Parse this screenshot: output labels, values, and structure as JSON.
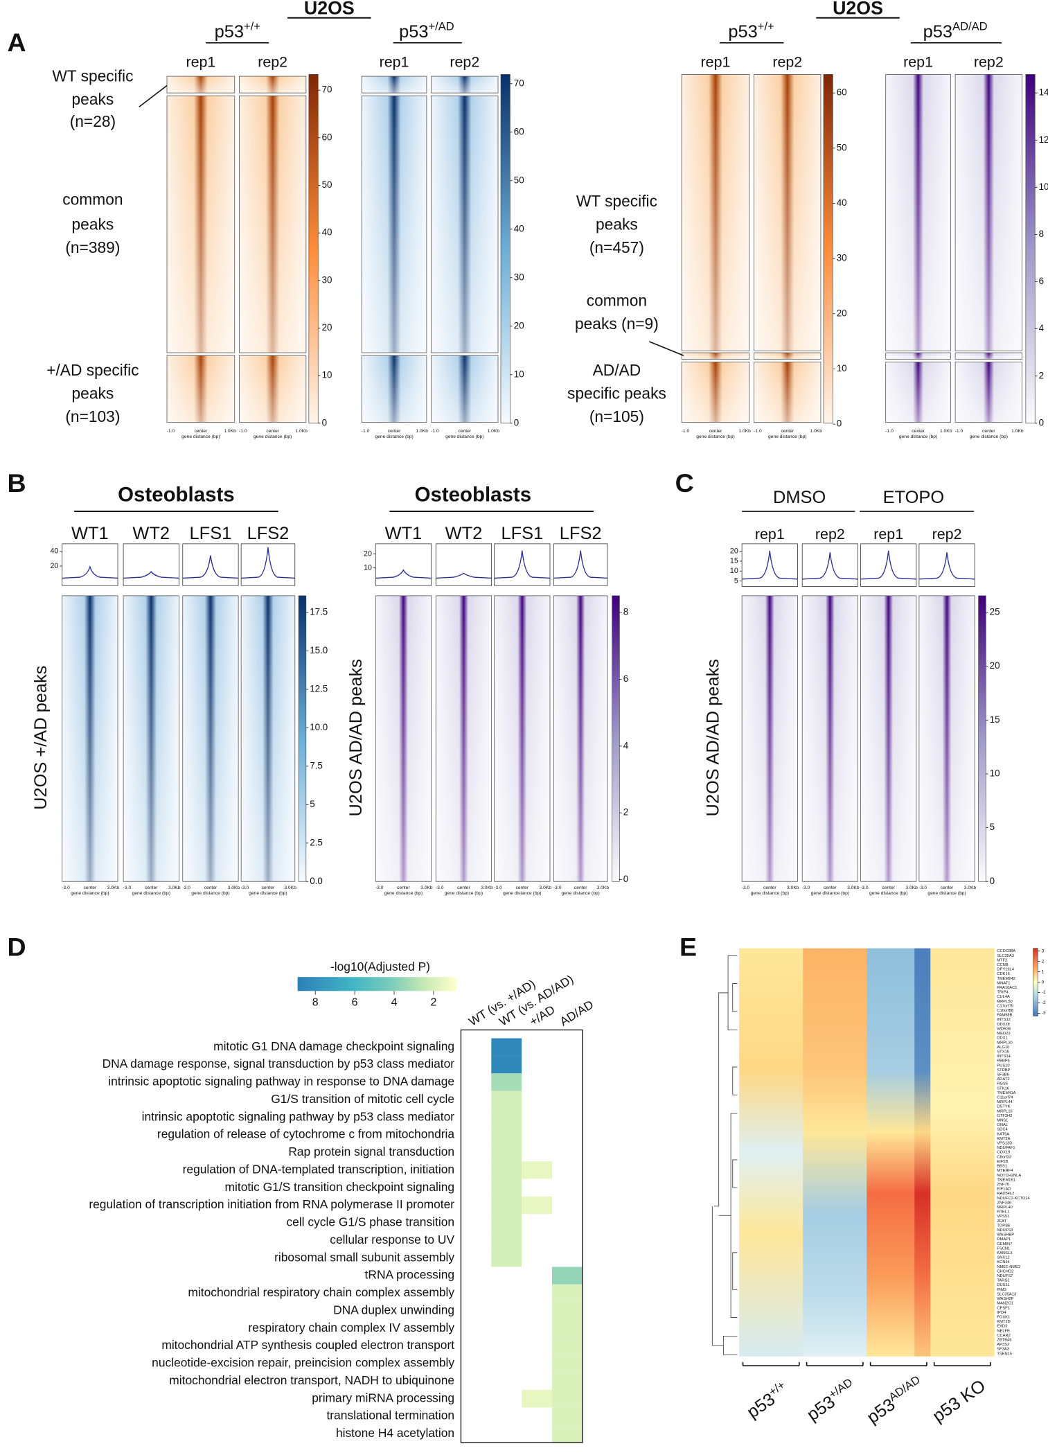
{
  "panel_a": {
    "label": "A",
    "left": {
      "title": "U2OS",
      "headers": [
        {
          "text": "p53",
          "sup": "+/+"
        },
        {
          "text": "p53",
          "sup": "+/AD"
        }
      ],
      "reps": [
        "rep1",
        "rep2"
      ],
      "groups": [
        [
          "WT specific",
          "peaks",
          "(n=28)"
        ],
        [
          "common",
          "peaks",
          "(n=389)"
        ],
        [
          "+/AD specific",
          "peaks",
          "(n=103)"
        ]
      ],
      "colorbars": [
        [
          0,
          10,
          20,
          30,
          40,
          50,
          60,
          70
        ],
        [
          0,
          10,
          20,
          30,
          40,
          50,
          60,
          70
        ]
      ]
    },
    "right": {
      "title": "U2OS",
      "headers": [
        {
          "text": "p53",
          "sup": "+/+"
        },
        {
          "text": "p53",
          "sup": "AD/AD"
        }
      ],
      "reps": [
        "rep1",
        "rep2"
      ],
      "groups": [
        [
          "WT specific",
          "peaks",
          "(n=457)"
        ],
        [
          "common",
          "peaks (n=9)"
        ],
        [
          "AD/AD",
          "specific peaks",
          "(n=105)"
        ]
      ],
      "colorbars": [
        [
          0,
          10,
          20,
          30,
          40,
          50,
          60
        ],
        [
          0,
          2,
          4,
          6,
          8,
          10,
          12,
          14
        ]
      ]
    },
    "x_ticks": [
      "-1.0",
      "center",
      "1.0Kb"
    ],
    "x_label": "gene distance (bp)"
  },
  "panel_b": {
    "label": "B",
    "left": {
      "title": "Osteoblasts",
      "samples": [
        "WT1",
        "WT2",
        "LFS1",
        "LFS2"
      ],
      "y_label": "U2OS +/AD peaks",
      "profile_ticks": [
        20,
        40
      ],
      "colorbar": [
        {
          "value": 0,
          "label": "0.0"
        },
        2.5,
        5,
        7.5,
        {
          "value": 10,
          "label": "10.0"
        },
        12.5,
        {
          "value": 15,
          "label": "15.0"
        },
        17.5
      ]
    },
    "right": {
      "title": "Osteoblasts",
      "samples": [
        "WT1",
        "WT2",
        "LFS1",
        "LFS2"
      ],
      "y_label": "U2OS AD/AD peaks",
      "profile_ticks": [
        10,
        20
      ],
      "colorbar": [
        0,
        2,
        4,
        6,
        8
      ]
    },
    "x_ticks": [
      "-3.0",
      "center",
      "3.0Kb"
    ],
    "x_label": "gene distance (bp)"
  },
  "panel_c": {
    "label": "C",
    "conditions": [
      "DMSO",
      "ETOPO"
    ],
    "reps": [
      "rep1",
      "rep2"
    ],
    "y_label": "U2OS AD/AD peaks",
    "profile_ticks": [
      5,
      10,
      15,
      20
    ],
    "colorbar": [
      0,
      5,
      10,
      15,
      20,
      25
    ]
  },
  "panel_d": {
    "label": "D",
    "colorbar_title": "-log10(Adjusted P)",
    "colorbar_ticks": [
      8,
      6,
      4,
      2
    ],
    "vlim": [
      0.85,
      8.9
    ],
    "columns": [
      "WT (vs. +/AD)",
      "WT (vs. AD/AD)",
      "+/AD",
      "AD/AD"
    ],
    "terms": [
      "mitotic G1 DNA damage checkpoint signaling",
      "DNA damage response, signal transduction by p53 class mediator",
      "intrinsic apoptotic signaling pathway in response to DNA damage",
      "G1/S transition of mitotic cell cycle",
      "intrinsic apoptotic signaling pathway by p53 class mediator",
      "regulation of release of cytochrome c from mitochondria",
      "Rap protein signal transduction",
      "regulation of DNA-templated transcription, initiation",
      "mitotic G1/S transition checkpoint signaling",
      "regulation of transcription initiation from RNA polymerase II promoter",
      "cell cycle G1/S phase transition",
      "cellular response to UV",
      "ribosomal small subunit assembly",
      "tRNA processing",
      "mitochondrial respiratory chain complex assembly",
      "DNA duplex unwinding",
      "respiratory chain complex IV assembly",
      "mitochondrial ATP synthesis coupled electron transport",
      "nucleotide-excision repair, preincision complex assembly",
      "mitochondrial electron transport, NADH to ubiquinone",
      "primary miRNA processing",
      "translational termination",
      "histone H4 acetylation"
    ],
    "values": [
      [
        null,
        8.5,
        null,
        null
      ],
      [
        null,
        8.5,
        null,
        null
      ],
      [
        null,
        3.2,
        null,
        null
      ],
      [
        null,
        2.1,
        null,
        null
      ],
      [
        null,
        2.1,
        null,
        null
      ],
      [
        null,
        2.1,
        null,
        null
      ],
      [
        null,
        2.1,
        null,
        null
      ],
      [
        null,
        2.1,
        1.5,
        null
      ],
      [
        null,
        2.1,
        null,
        null
      ],
      [
        null,
        2.1,
        1.5,
        null
      ],
      [
        null,
        2.1,
        null,
        null
      ],
      [
        null,
        2.1,
        null,
        null
      ],
      [
        null,
        2.1,
        null,
        null
      ],
      [
        null,
        null,
        null,
        3.6
      ],
      [
        null,
        null,
        null,
        1.9
      ],
      [
        null,
        null,
        null,
        1.9
      ],
      [
        null,
        null,
        null,
        1.9
      ],
      [
        null,
        null,
        null,
        1.9
      ],
      [
        null,
        null,
        null,
        1.9
      ],
      [
        null,
        null,
        null,
        1.9
      ],
      [
        null,
        null,
        1.5,
        1.9
      ],
      [
        null,
        null,
        null,
        1.9
      ],
      [
        null,
        null,
        null,
        1.9
      ]
    ]
  },
  "panel_e": {
    "label": "E",
    "colorbar": [
      3,
      2,
      1,
      0,
      -1,
      -2,
      -3
    ],
    "groups": [
      {
        "text": "p53",
        "sup": "+/+"
      },
      {
        "text": "p53",
        "sup": "+/AD"
      },
      {
        "text": "p53",
        "sup": "AD/AD"
      },
      {
        "text": "p53 KO"
      }
    ],
    "genes": [
      "CCDC88A",
      "SLC35A3",
      "MTF2",
      "CCNB",
      "DPY19L4",
      "CDK16",
      "TMEM242",
      "MNAT1",
      "FRA10AC1",
      "TRIP4",
      "CUL4A",
      "MRPL50",
      "C17orf75",
      "C10orf88",
      "FAM98B",
      "INTS12",
      "DDX18",
      "WDR36",
      "MED23",
      "DDX1",
      "MRPL30",
      "ALG10",
      "STX16",
      "INTS14",
      "PBBP5",
      "PUS10",
      "STRBP",
      "SF3B6",
      "ADAT2",
      "RGS5",
      "STK16",
      "TMEM41A",
      "C11orf74",
      "MRPL44",
      "DSTYK",
      "MRPL16",
      "GTF2H2",
      "MNS1",
      "GNAL",
      "SDC4",
      "KAT6A",
      "KMT2A",
      "VPS13D",
      "NDUFAF1",
      "COX19",
      "C8orf33",
      "EIF5B",
      "BBS1",
      "MTERF4",
      "NOTCH2NLA",
      "TMEM161",
      "ZNF76",
      "EIF1AD",
      "RAD54L2",
      "NDUFC2-KCTD14",
      "ZNF346",
      "MRPL40",
      "RTEL1",
      "VPS51",
      "ZFAT",
      "TOP3B",
      "NDUFS3",
      "WASHBP",
      "DMAP1",
      "GEMIN7",
      "FSCN1",
      "KANSL3",
      "SNX12",
      "KCNJ4",
      "NME1-NME2",
      "CHCHD2",
      "NDUFS7",
      "TARS2",
      "DUS1L",
      "PIM3",
      "SLC35A13",
      "WASH2P",
      "MAN2C1",
      "CPSF1",
      "IPO4",
      "FOXK1",
      "KMT2D",
      "EXD3",
      "NELFB",
      "CCAR2",
      "ZBTB45",
      "AP3S2",
      "SF3A3",
      "TSEN15"
    ]
  }
}
